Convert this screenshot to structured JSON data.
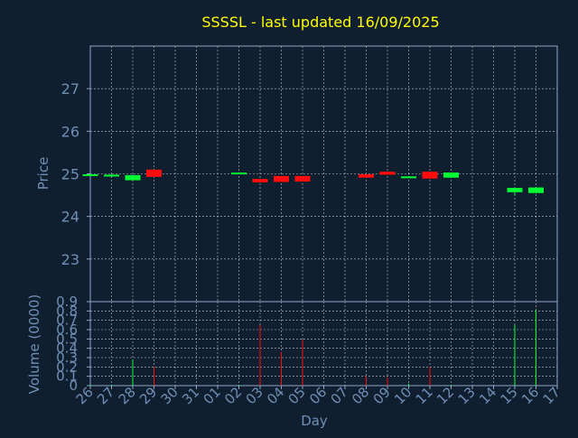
{
  "chart_data": {
    "type": "candlestick",
    "title": "SSSSL - last updated 16/09/2025",
    "price_panel": {
      "ylabel": "Price",
      "ylim": [
        22.0,
        28.0
      ],
      "yticks": [
        "23",
        "24",
        "25",
        "26",
        "27"
      ],
      "ytick_values": [
        23,
        24,
        25,
        26,
        27
      ]
    },
    "volume_panel": {
      "ylabel": "Volume (0000)",
      "ylim": [
        0,
        0.9
      ],
      "yticks": [
        "0",
        "0.1",
        "0.2",
        "0.3",
        "0.4",
        "0.5",
        "0.6",
        "0.7",
        "0.8",
        "0.9"
      ],
      "ytick_values": [
        0,
        0.1,
        0.2,
        0.3,
        0.4,
        0.5,
        0.6,
        0.7,
        0.8,
        0.9
      ]
    },
    "xlabel": "Day",
    "x_tick_labels": [
      "26",
      "27",
      "28",
      "29",
      "30",
      "31",
      "01",
      "02",
      "03",
      "04",
      "05",
      "06",
      "07",
      "08",
      "09",
      "10",
      "11",
      "12",
      "13",
      "14",
      "15",
      "16",
      "17"
    ],
    "candles": [
      {
        "day": "26",
        "open": 24.96,
        "close": 24.99,
        "high": 25.0,
        "low": 24.96,
        "volume": 0.01
      },
      {
        "day": "27",
        "open": 24.95,
        "close": 24.98,
        "high": 24.99,
        "low": 24.95,
        "volume": 0.01
      },
      {
        "day": "28",
        "open": 24.85,
        "close": 24.97,
        "high": 24.98,
        "low": 24.84,
        "volume": 0.28
      },
      {
        "day": "29",
        "open": 25.1,
        "close": 24.93,
        "high": 25.1,
        "low": 24.93,
        "volume": 0.2
      },
      {
        "day": "02",
        "open": 25.0,
        "close": 25.03,
        "high": 25.04,
        "low": 25.0,
        "volume": 0.01
      },
      {
        "day": "03",
        "open": 24.88,
        "close": 24.8,
        "high": 24.88,
        "low": 24.8,
        "volume": 0.65
      },
      {
        "day": "04",
        "open": 24.95,
        "close": 24.81,
        "high": 24.95,
        "low": 24.81,
        "volume": 0.36
      },
      {
        "day": "05",
        "open": 24.95,
        "close": 24.82,
        "high": 24.95,
        "low": 24.82,
        "volume": 0.49
      },
      {
        "day": "08",
        "open": 24.99,
        "close": 24.91,
        "high": 25.0,
        "low": 24.91,
        "volume": 0.1
      },
      {
        "day": "09",
        "open": 25.05,
        "close": 24.98,
        "high": 25.05,
        "low": 24.98,
        "volume": 0.09
      },
      {
        "day": "10",
        "open": 24.91,
        "close": 24.94,
        "high": 24.95,
        "low": 24.91,
        "volume": 0.02
      },
      {
        "day": "11",
        "open": 25.05,
        "close": 24.89,
        "high": 25.05,
        "low": 24.89,
        "volume": 0.2
      },
      {
        "day": "12",
        "open": 24.91,
        "close": 25.03,
        "high": 25.03,
        "low": 24.91,
        "volume": 0.01
      },
      {
        "day": "15",
        "open": 24.57,
        "close": 24.67,
        "high": 24.67,
        "low": 24.5,
        "volume": 0.65
      },
      {
        "day": "16",
        "open": 24.55,
        "close": 24.68,
        "high": 24.68,
        "low": 24.55,
        "volume": 0.81
      }
    ],
    "colors": {
      "background": "#0f1f30",
      "title": "#ffff00",
      "axis_label": "#6f8fb4",
      "tick_label": "#6f8fb4",
      "axis_line": "#8fa8c8",
      "grid": "#ffffff",
      "up": "#00ff33",
      "down": "#ff0d0d"
    },
    "grid": true
  }
}
